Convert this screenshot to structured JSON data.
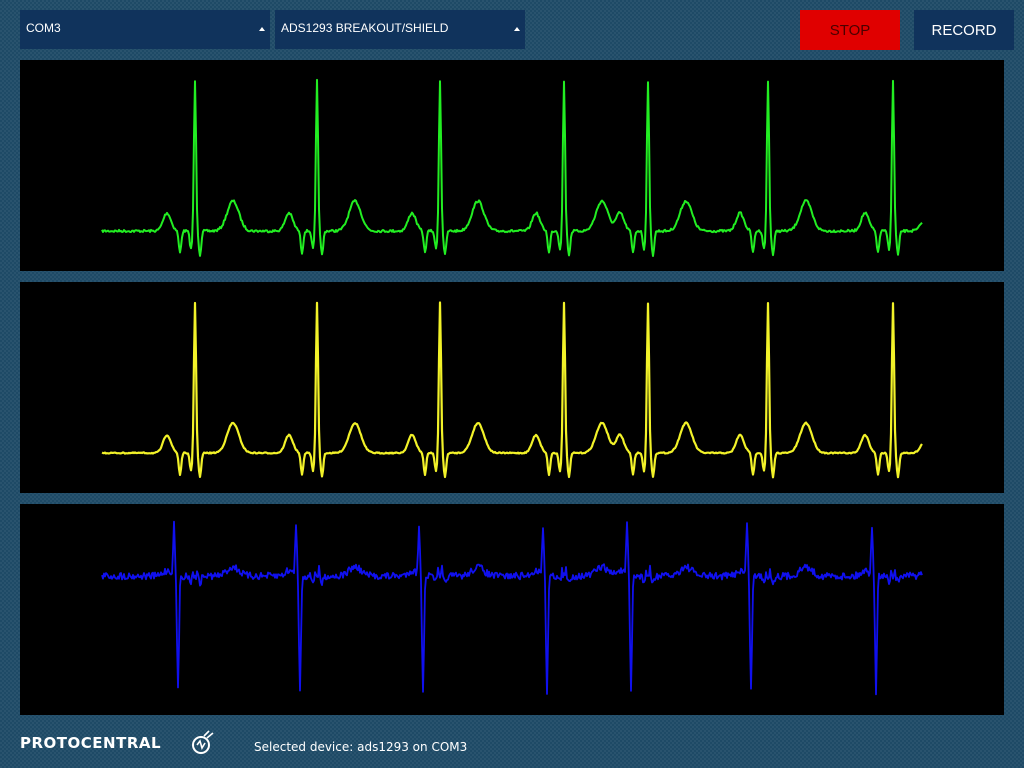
{
  "toolbar": {
    "port_select": {
      "value": "COM3"
    },
    "board_select": {
      "value": "ADS1293 BREAKOUT/SHIELD"
    },
    "stop_label": "STOP",
    "record_label": "RECORD"
  },
  "footer": {
    "logo_text": "PROTOCENTRAL",
    "logo_icon": "protocentral-logo-icon",
    "status": "Selected device: ads1293 on COM3"
  },
  "colors": {
    "background": "#1e4a66",
    "control": "#10335c",
    "stop": "#e00000",
    "plot_background": "#000000"
  },
  "channels": [
    {
      "color": "#22ee22",
      "waveform": "ecg",
      "noise": "low"
    },
    {
      "color": "#f2f229",
      "waveform": "ecg",
      "noise": "very-low"
    },
    {
      "color": "#1010ee",
      "waveform": "ecg-inverted",
      "noise": "high"
    }
  ]
}
